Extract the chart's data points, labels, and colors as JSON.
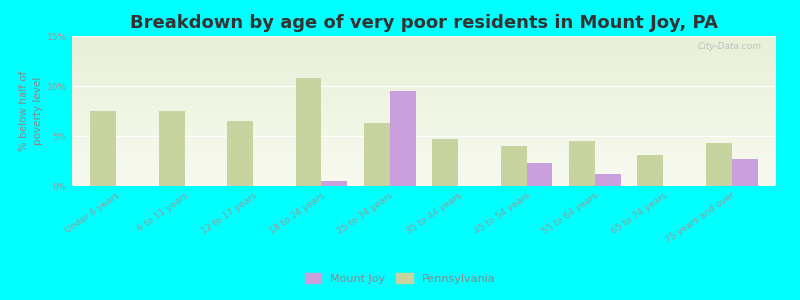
{
  "title": "Breakdown by age of very poor residents in Mount Joy, PA",
  "ylabel": "% below half of\npoverty level",
  "categories": [
    "Under 6 years",
    "6 to 11 years",
    "12 to 17 years",
    "18 to 24 years",
    "25 to 34 years",
    "35 to 44 years",
    "45 to 54 years",
    "55 to 64 years",
    "65 to 74 years",
    "75 years and over"
  ],
  "mount_joy": [
    0.0,
    0.0,
    0.0,
    0.5,
    9.5,
    0.0,
    2.3,
    1.2,
    0.0,
    2.7
  ],
  "pennsylvania": [
    7.5,
    7.5,
    6.5,
    10.8,
    6.3,
    4.7,
    4.0,
    4.5,
    3.1,
    4.3
  ],
  "mount_joy_color": "#c9a0dc",
  "pennsylvania_color": "#c8d4a0",
  "background_color": "#00ffff",
  "plot_bg_top": "#e8f0d8",
  "plot_bg_bottom": "#f8faf0",
  "title_fontsize": 13,
  "ylabel_fontsize": 7.5,
  "tick_fontsize": 6.5,
  "legend_fontsize": 8,
  "ylim": [
    0,
    15
  ],
  "yticks": [
    0,
    5,
    10,
    15
  ],
  "ytick_labels": [
    "0%",
    "5%",
    "10%",
    "15%"
  ],
  "bar_width": 0.38,
  "watermark": "City-Data.com",
  "legend_mount_joy": "Mount Joy",
  "legend_pennsylvania": "Pennsylvania"
}
